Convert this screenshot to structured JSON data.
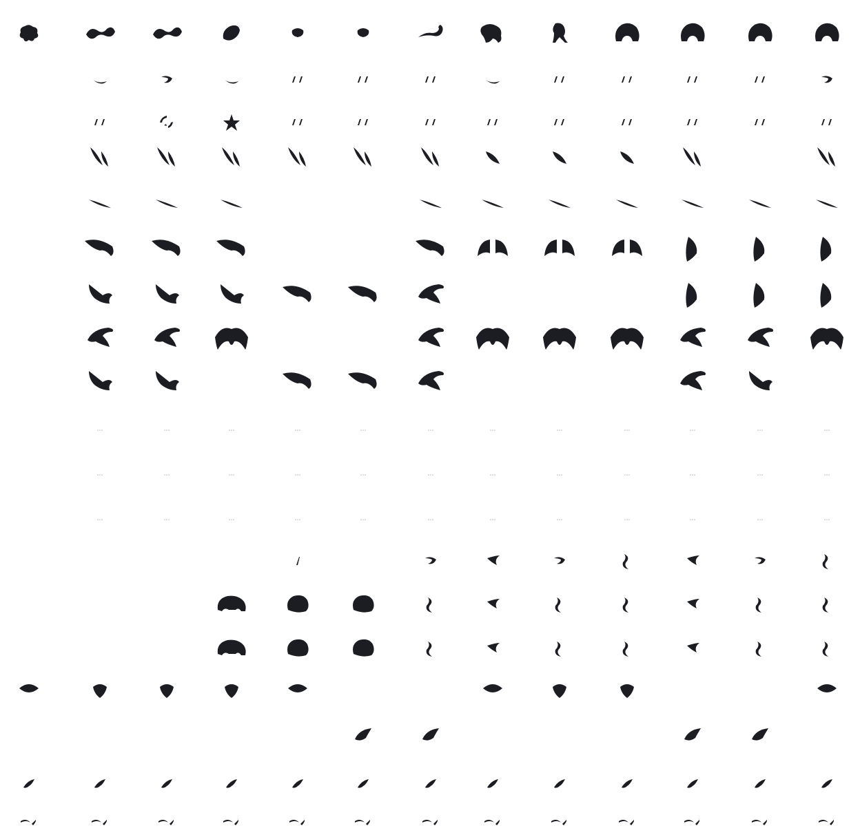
{
  "sheet": {
    "colors": {
      "background": "#ffffff",
      "ink": "#1b1d22",
      "faint": "#c4b5a8"
    },
    "grid": {
      "columns": 13,
      "rows": 19
    },
    "sprites": [
      {
        "c": 0,
        "r": 0,
        "s": "critter"
      },
      {
        "c": 1,
        "r": 0,
        "s": "serpent"
      },
      {
        "c": 2,
        "r": 0,
        "s": "serpent"
      },
      {
        "c": 3,
        "r": 0,
        "s": "slug"
      },
      {
        "c": 4,
        "r": 0,
        "s": "spider"
      },
      {
        "c": 5,
        "r": 0,
        "s": "spider"
      },
      {
        "c": 6,
        "r": 0,
        "s": "scorpion"
      },
      {
        "c": 7,
        "r": 0,
        "s": "beast"
      },
      {
        "c": 8,
        "r": 0,
        "s": "walker"
      },
      {
        "c": 9,
        "r": 0,
        "s": "brute"
      },
      {
        "c": 10,
        "r": 0,
        "s": "brute"
      },
      {
        "c": 11,
        "r": 0,
        "s": "brute"
      },
      {
        "c": 12,
        "r": 0,
        "s": "brute"
      },
      {
        "c": 1,
        "r": 1,
        "s": "swoosh"
      },
      {
        "c": 2,
        "r": 1,
        "s": "hook"
      },
      {
        "c": 3,
        "r": 1,
        "s": "swoosh"
      },
      {
        "c": 4,
        "r": 1,
        "s": "ticks"
      },
      {
        "c": 5,
        "r": 1,
        "s": "ticks"
      },
      {
        "c": 6,
        "r": 1,
        "s": "ticks"
      },
      {
        "c": 7,
        "r": 1,
        "s": "swoosh"
      },
      {
        "c": 8,
        "r": 1,
        "s": "ticks"
      },
      {
        "c": 9,
        "r": 1,
        "s": "ticks"
      },
      {
        "c": 10,
        "r": 1,
        "s": "ticks"
      },
      {
        "c": 11,
        "r": 1,
        "s": "ticks"
      },
      {
        "c": 12,
        "r": 1,
        "s": "hook"
      },
      {
        "c": 1,
        "r": 2,
        "s": "ticks"
      },
      {
        "c": 2,
        "r": 2,
        "s": "burst"
      },
      {
        "c": 3,
        "r": 2,
        "s": "star"
      },
      {
        "c": 4,
        "r": 2,
        "s": "ticks"
      },
      {
        "c": 5,
        "r": 2,
        "s": "ticks"
      },
      {
        "c": 6,
        "r": 2,
        "s": "ticks"
      },
      {
        "c": 7,
        "r": 2,
        "s": "ticks"
      },
      {
        "c": 8,
        "r": 2,
        "s": "ticks"
      },
      {
        "c": 9,
        "r": 2,
        "s": "ticks"
      },
      {
        "c": 10,
        "r": 2,
        "s": "ticks"
      },
      {
        "c": 11,
        "r": 2,
        "s": "ticks"
      },
      {
        "c": 12,
        "r": 2,
        "s": "ticks"
      },
      {
        "c": 1,
        "r": 3,
        "s": "leaves"
      },
      {
        "c": 2,
        "r": 3,
        "s": "leaves"
      },
      {
        "c": 3,
        "r": 3,
        "s": "leaves"
      },
      {
        "c": 4,
        "r": 3,
        "s": "leaves"
      },
      {
        "c": 5,
        "r": 3,
        "s": "leaves"
      },
      {
        "c": 6,
        "r": 3,
        "s": "leaves"
      },
      {
        "c": 7,
        "r": 3,
        "s": "leaf"
      },
      {
        "c": 8,
        "r": 3,
        "s": "leaf"
      },
      {
        "c": 9,
        "r": 3,
        "s": "leaf"
      },
      {
        "c": 10,
        "r": 3,
        "s": "leaves"
      },
      {
        "c": 12,
        "r": 3,
        "s": "leaves"
      },
      {
        "c": 1,
        "r": 4,
        "s": "streak"
      },
      {
        "c": 2,
        "r": 4,
        "s": "streak"
      },
      {
        "c": 3,
        "r": 4,
        "s": "streak"
      },
      {
        "c": 6,
        "r": 4,
        "s": "streak"
      },
      {
        "c": 7,
        "r": 4,
        "s": "streak"
      },
      {
        "c": 8,
        "r": 4,
        "s": "streak"
      },
      {
        "c": 9,
        "r": 4,
        "s": "streak"
      },
      {
        "c": 10,
        "r": 4,
        "s": "streak"
      },
      {
        "c": 11,
        "r": 4,
        "s": "streak"
      },
      {
        "c": 12,
        "r": 4,
        "s": "streak"
      },
      {
        "c": 1,
        "r": 5,
        "s": "wing"
      },
      {
        "c": 2,
        "r": 5,
        "s": "wing"
      },
      {
        "c": 3,
        "r": 5,
        "s": "wing"
      },
      {
        "c": 6,
        "r": 5,
        "s": "wing"
      },
      {
        "c": 7,
        "r": 5,
        "s": "wings"
      },
      {
        "c": 8,
        "r": 5,
        "s": "wings"
      },
      {
        "c": 9,
        "r": 5,
        "s": "wings"
      },
      {
        "c": 10,
        "r": 5,
        "s": "fin"
      },
      {
        "c": 11,
        "r": 5,
        "s": "fin"
      },
      {
        "c": 12,
        "r": 5,
        "s": "fin"
      },
      {
        "c": 1,
        "r": 6,
        "s": "bird"
      },
      {
        "c": 2,
        "r": 6,
        "s": "bird"
      },
      {
        "c": 3,
        "r": 6,
        "s": "bird"
      },
      {
        "c": 4,
        "r": 6,
        "s": "wing"
      },
      {
        "c": 5,
        "r": 6,
        "s": "wing"
      },
      {
        "c": 6,
        "r": 6,
        "s": "claw"
      },
      {
        "c": 10,
        "r": 6,
        "s": "fin"
      },
      {
        "c": 11,
        "r": 6,
        "s": "fin"
      },
      {
        "c": 12,
        "r": 6,
        "s": "fin"
      },
      {
        "c": 1,
        "r": 7,
        "s": "claw"
      },
      {
        "c": 2,
        "r": 7,
        "s": "claw"
      },
      {
        "c": 3,
        "r": 7,
        "s": "bat"
      },
      {
        "c": 6,
        "r": 7,
        "s": "claw"
      },
      {
        "c": 7,
        "r": 7,
        "s": "bat"
      },
      {
        "c": 8,
        "r": 7,
        "s": "bat"
      },
      {
        "c": 9,
        "r": 7,
        "s": "bat"
      },
      {
        "c": 10,
        "r": 7,
        "s": "claw"
      },
      {
        "c": 11,
        "r": 7,
        "s": "claw"
      },
      {
        "c": 12,
        "r": 7,
        "s": "bat"
      },
      {
        "c": 1,
        "r": 8,
        "s": "bird"
      },
      {
        "c": 2,
        "r": 8,
        "s": "bird"
      },
      {
        "c": 4,
        "r": 8,
        "s": "wing"
      },
      {
        "c": 5,
        "r": 8,
        "s": "wing"
      },
      {
        "c": 6,
        "r": 8,
        "s": "claw"
      },
      {
        "c": 10,
        "r": 8,
        "s": "claw"
      },
      {
        "c": 11,
        "r": 8,
        "s": "bird"
      },
      {
        "c": 1,
        "r": 9,
        "s": "dots"
      },
      {
        "c": 2,
        "r": 9,
        "s": "dots"
      },
      {
        "c": 3,
        "r": 9,
        "s": "dots"
      },
      {
        "c": 4,
        "r": 9,
        "s": "dots"
      },
      {
        "c": 5,
        "r": 9,
        "s": "dots"
      },
      {
        "c": 6,
        "r": 9,
        "s": "dots"
      },
      {
        "c": 7,
        "r": 9,
        "s": "dots"
      },
      {
        "c": 8,
        "r": 9,
        "s": "dots"
      },
      {
        "c": 9,
        "r": 9,
        "s": "dots"
      },
      {
        "c": 10,
        "r": 9,
        "s": "dots"
      },
      {
        "c": 11,
        "r": 9,
        "s": "dots"
      },
      {
        "c": 12,
        "r": 9,
        "s": "dots"
      },
      {
        "c": 1,
        "r": 10,
        "s": "dots"
      },
      {
        "c": 2,
        "r": 10,
        "s": "dots"
      },
      {
        "c": 3,
        "r": 10,
        "s": "dots"
      },
      {
        "c": 4,
        "r": 10,
        "s": "dots"
      },
      {
        "c": 5,
        "r": 10,
        "s": "dots"
      },
      {
        "c": 6,
        "r": 10,
        "s": "dots"
      },
      {
        "c": 7,
        "r": 10,
        "s": "dots"
      },
      {
        "c": 8,
        "r": 10,
        "s": "dots"
      },
      {
        "c": 9,
        "r": 10,
        "s": "dots"
      },
      {
        "c": 10,
        "r": 10,
        "s": "dots"
      },
      {
        "c": 11,
        "r": 10,
        "s": "dots"
      },
      {
        "c": 12,
        "r": 10,
        "s": "dots"
      },
      {
        "c": 1,
        "r": 11,
        "s": "dots"
      },
      {
        "c": 2,
        "r": 11,
        "s": "dots"
      },
      {
        "c": 3,
        "r": 11,
        "s": "dots"
      },
      {
        "c": 4,
        "r": 11,
        "s": "dots"
      },
      {
        "c": 5,
        "r": 11,
        "s": "dots"
      },
      {
        "c": 6,
        "r": 11,
        "s": "dots"
      },
      {
        "c": 7,
        "r": 11,
        "s": "dots"
      },
      {
        "c": 8,
        "r": 11,
        "s": "dots"
      },
      {
        "c": 9,
        "r": 11,
        "s": "dots"
      },
      {
        "c": 10,
        "r": 11,
        "s": "dots"
      },
      {
        "c": 11,
        "r": 11,
        "s": "dots"
      },
      {
        "c": 12,
        "r": 11,
        "s": "dots"
      },
      {
        "c": 4,
        "r": 12,
        "s": "tick"
      },
      {
        "c": 6,
        "r": 12,
        "s": "hook"
      },
      {
        "c": 7,
        "r": 12,
        "s": "flap"
      },
      {
        "c": 8,
        "r": 12,
        "s": "hook"
      },
      {
        "c": 9,
        "r": 12,
        "s": "curl"
      },
      {
        "c": 10,
        "r": 12,
        "s": "flap"
      },
      {
        "c": 11,
        "r": 12,
        "s": "hook"
      },
      {
        "c": 12,
        "r": 12,
        "s": "curl"
      },
      {
        "c": 3,
        "r": 13,
        "s": "turtle"
      },
      {
        "c": 4,
        "r": 13,
        "s": "boulder"
      },
      {
        "c": 5,
        "r": 13,
        "s": "boulder"
      },
      {
        "c": 6,
        "r": 13,
        "s": "curl"
      },
      {
        "c": 7,
        "r": 13,
        "s": "flap"
      },
      {
        "c": 8,
        "r": 13,
        "s": "curl"
      },
      {
        "c": 9,
        "r": 13,
        "s": "curl"
      },
      {
        "c": 10,
        "r": 13,
        "s": "flap"
      },
      {
        "c": 11,
        "r": 13,
        "s": "curl"
      },
      {
        "c": 12,
        "r": 13,
        "s": "curl"
      },
      {
        "c": 3,
        "r": 14,
        "s": "turtle"
      },
      {
        "c": 4,
        "r": 14,
        "s": "boulder"
      },
      {
        "c": 5,
        "r": 14,
        "s": "boulder"
      },
      {
        "c": 6,
        "r": 14,
        "s": "curl"
      },
      {
        "c": 7,
        "r": 14,
        "s": "flap"
      },
      {
        "c": 8,
        "r": 14,
        "s": "curl"
      },
      {
        "c": 9,
        "r": 14,
        "s": "curl"
      },
      {
        "c": 10,
        "r": 14,
        "s": "flap"
      },
      {
        "c": 11,
        "r": 14,
        "s": "curl"
      },
      {
        "c": 12,
        "r": 14,
        "s": "curl"
      },
      {
        "c": 0,
        "r": 15,
        "s": "fan"
      },
      {
        "c": 1,
        "r": 15,
        "s": "drop"
      },
      {
        "c": 2,
        "r": 15,
        "s": "drop"
      },
      {
        "c": 3,
        "r": 15,
        "s": "drop"
      },
      {
        "c": 4,
        "r": 15,
        "s": "fan"
      },
      {
        "c": 7,
        "r": 15,
        "s": "fan"
      },
      {
        "c": 8,
        "r": 15,
        "s": "drop"
      },
      {
        "c": 9,
        "r": 15,
        "s": "drop"
      },
      {
        "c": 12,
        "r": 15,
        "s": "fan"
      },
      {
        "c": 5,
        "r": 16,
        "s": "fish"
      },
      {
        "c": 6,
        "r": 16,
        "s": "fish"
      },
      {
        "c": 10,
        "r": 16,
        "s": "fish"
      },
      {
        "c": 11,
        "r": 16,
        "s": "fish"
      },
      {
        "c": 0,
        "r": 17,
        "s": "small"
      },
      {
        "c": 1,
        "r": 17,
        "s": "small"
      },
      {
        "c": 2,
        "r": 17,
        "s": "small"
      },
      {
        "c": 3,
        "r": 17,
        "s": "small"
      },
      {
        "c": 4,
        "r": 17,
        "s": "small"
      },
      {
        "c": 5,
        "r": 17,
        "s": "small"
      },
      {
        "c": 6,
        "r": 17,
        "s": "small"
      },
      {
        "c": 7,
        "r": 17,
        "s": "small"
      },
      {
        "c": 8,
        "r": 17,
        "s": "small"
      },
      {
        "c": 9,
        "r": 17,
        "s": "small"
      },
      {
        "c": 10,
        "r": 17,
        "s": "small"
      },
      {
        "c": 11,
        "r": 17,
        "s": "small"
      },
      {
        "c": 12,
        "r": 17,
        "s": "small"
      },
      {
        "c": 0,
        "r": 18,
        "s": "squiggle"
      },
      {
        "c": 1,
        "r": 18,
        "s": "squiggle"
      },
      {
        "c": 2,
        "r": 18,
        "s": "squiggle"
      },
      {
        "c": 3,
        "r": 18,
        "s": "squiggle"
      },
      {
        "c": 4,
        "r": 18,
        "s": "squiggle"
      },
      {
        "c": 5,
        "r": 18,
        "s": "squiggle"
      },
      {
        "c": 6,
        "r": 18,
        "s": "squiggle"
      },
      {
        "c": 7,
        "r": 18,
        "s": "squiggle"
      },
      {
        "c": 8,
        "r": 18,
        "s": "squiggle"
      },
      {
        "c": 9,
        "r": 18,
        "s": "squiggle"
      },
      {
        "c": 10,
        "r": 18,
        "s": "squiggle"
      },
      {
        "c": 11,
        "r": 18,
        "s": "squiggle"
      },
      {
        "c": 12,
        "r": 18,
        "s": "squiggle"
      }
    ]
  }
}
